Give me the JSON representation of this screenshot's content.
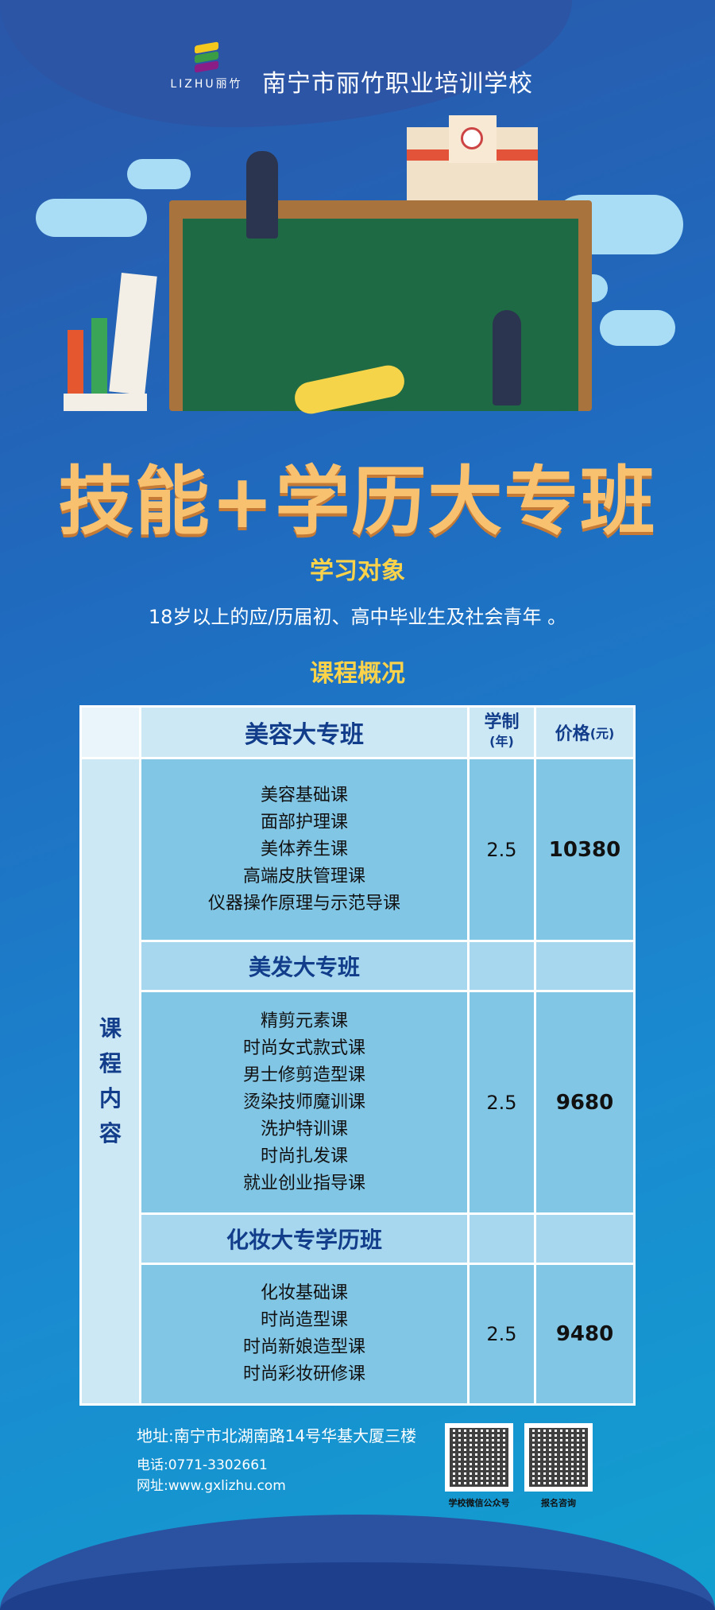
{
  "header": {
    "logo_text": "LIZHU丽竹",
    "school_name": "南宁市丽竹职业培训学校"
  },
  "title": "技能+学历大专班",
  "audience": {
    "heading": "学习对象",
    "text": "18岁以上的应/历届初、高中毕业生及社会青年 。"
  },
  "overview_heading": "课程概况",
  "table": {
    "side_label": [
      "课",
      "程",
      "内",
      "容"
    ],
    "col_years": "学制",
    "col_years_unit": "(年)",
    "col_price": "价格",
    "col_price_unit": "(元)",
    "programs": [
      {
        "name": "美容大专班",
        "courses": [
          "美容基础课",
          "面部护理课",
          "美体养生课",
          "高端皮肤管理课",
          "仪器操作原理与示范导课"
        ],
        "years": "2.5",
        "price": "10380"
      },
      {
        "name": "美发大专班",
        "courses": [
          "精剪元素课",
          "时尚女式款式课",
          "男士修剪造型课",
          "烫染技师魔训课",
          "洗护特训课",
          "时尚扎发课",
          "就业创业指导课"
        ],
        "years": "2.5",
        "price": "9680"
      },
      {
        "name": "化妆大专学历班",
        "courses": [
          "化妆基础课",
          "时尚造型课",
          "时尚新娘造型课",
          "时尚彩妆研修课"
        ],
        "years": "2.5",
        "price": "9480"
      }
    ]
  },
  "footer": {
    "address": "地址:南宁市北湖南路14号华基大厦三楼",
    "phone": "电话:0771-3302661",
    "website": "网址:www.gxlizhu.com",
    "qr1_label": "学校微信公众号",
    "qr2_label": "报名咨询"
  },
  "colors": {
    "title": "#f7c170",
    "heading": "#fbd34a",
    "table_header": "#cde8f5",
    "table_body": "#82c6e6",
    "header_text": "#123d8a"
  }
}
